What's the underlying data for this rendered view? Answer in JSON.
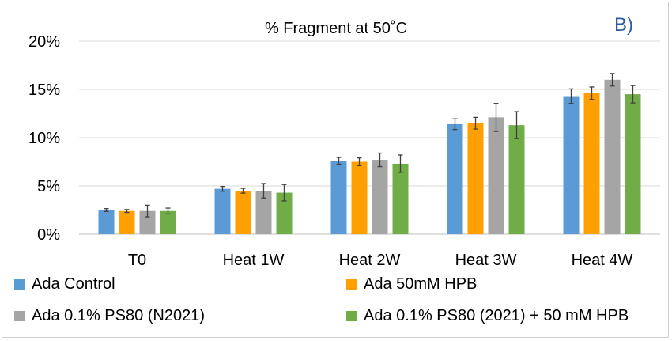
{
  "chart_data": {
    "type": "bar",
    "title": "% Fragment at 50˚C",
    "panel_label": "B)",
    "xlabel": "",
    "ylabel": "",
    "ylim": [
      0,
      20
    ],
    "yticks": [
      0,
      5,
      10,
      15,
      20
    ],
    "ytick_labels": [
      "0%",
      "5%",
      "10%",
      "15%",
      "20%"
    ],
    "grid": true,
    "legend_position": "bottom",
    "categories": [
      "T0",
      "Heat 1W",
      "Heat 2W",
      "Heat 3W",
      "Heat 4W"
    ],
    "series": [
      {
        "name": "Ada Control",
        "color": "#5b9bd5",
        "values": [
          2.5,
          4.7,
          7.6,
          11.4,
          14.3
        ],
        "errors": [
          0.15,
          0.25,
          0.35,
          0.55,
          0.75
        ]
      },
      {
        "name": "Ada 50mM HPB",
        "color": "#ffa000",
        "values": [
          2.4,
          4.5,
          7.5,
          11.5,
          14.6
        ],
        "errors": [
          0.15,
          0.25,
          0.4,
          0.6,
          0.65
        ]
      },
      {
        "name": "Ada 0.1% PS80 (N2021)",
        "color": "#a5a5a5",
        "values": [
          2.4,
          4.5,
          7.7,
          12.1,
          16.0
        ],
        "errors": [
          0.6,
          0.75,
          0.7,
          1.45,
          0.65
        ]
      },
      {
        "name": "Ada 0.1% PS80 (2021) + 50 mM HPB",
        "color": "#70ad47",
        "values": [
          2.4,
          4.3,
          7.3,
          11.3,
          14.5
        ],
        "errors": [
          0.3,
          0.85,
          0.9,
          1.4,
          0.9
        ]
      }
    ]
  }
}
